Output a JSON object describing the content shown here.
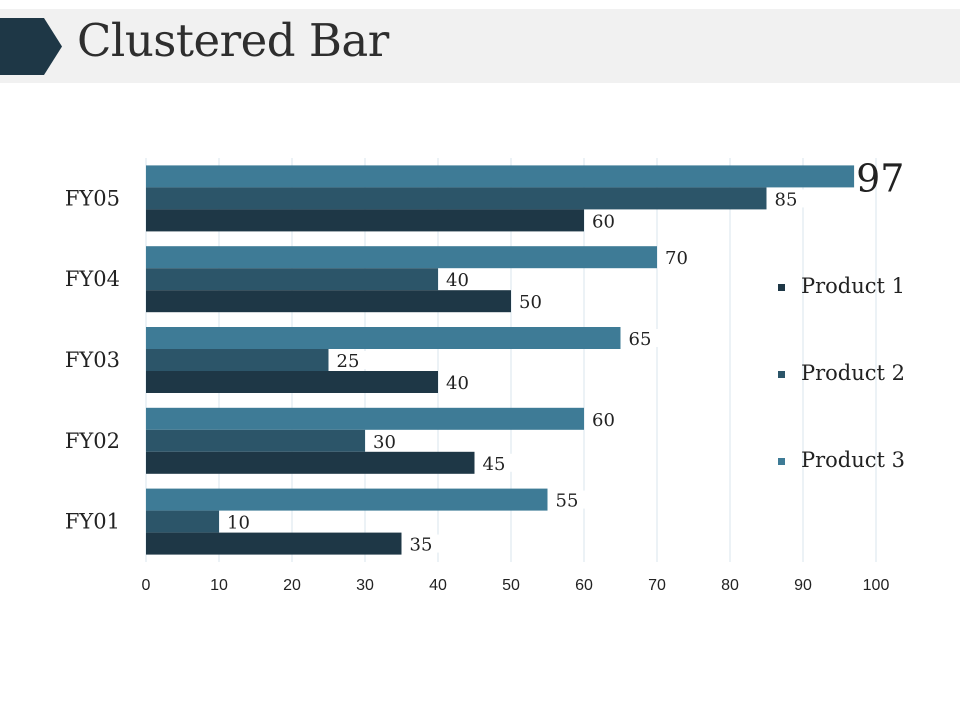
{
  "page": {
    "title": "Clustered Bar",
    "header_band_color": "#f1f1f1",
    "header_arrow_color": "#1e3746"
  },
  "chart_data": {
    "type": "bar",
    "orientation": "horizontal",
    "title": "",
    "categories": [
      "FY01",
      "FY02",
      "FY03",
      "FY04",
      "FY05"
    ],
    "series": [
      {
        "name": "Product 1",
        "color": "#1e3746",
        "values": [
          35,
          45,
          40,
          50,
          60
        ]
      },
      {
        "name": "Product 2",
        "color": "#2c5569",
        "values": [
          10,
          30,
          25,
          40,
          85
        ]
      },
      {
        "name": "Product 3",
        "color": "#3e7b96",
        "values": [
          55,
          60,
          65,
          70,
          97
        ]
      }
    ],
    "xlim": [
      0,
      100
    ],
    "xticks": [
      0,
      10,
      20,
      30,
      40,
      50,
      60,
      70,
      80,
      90,
      100
    ],
    "grid": true,
    "grid_color": "#d9e6ec",
    "data_labels": true,
    "emphasized_label": {
      "category": "FY05",
      "series": "Product 3"
    },
    "legend": {
      "position": "right"
    }
  }
}
